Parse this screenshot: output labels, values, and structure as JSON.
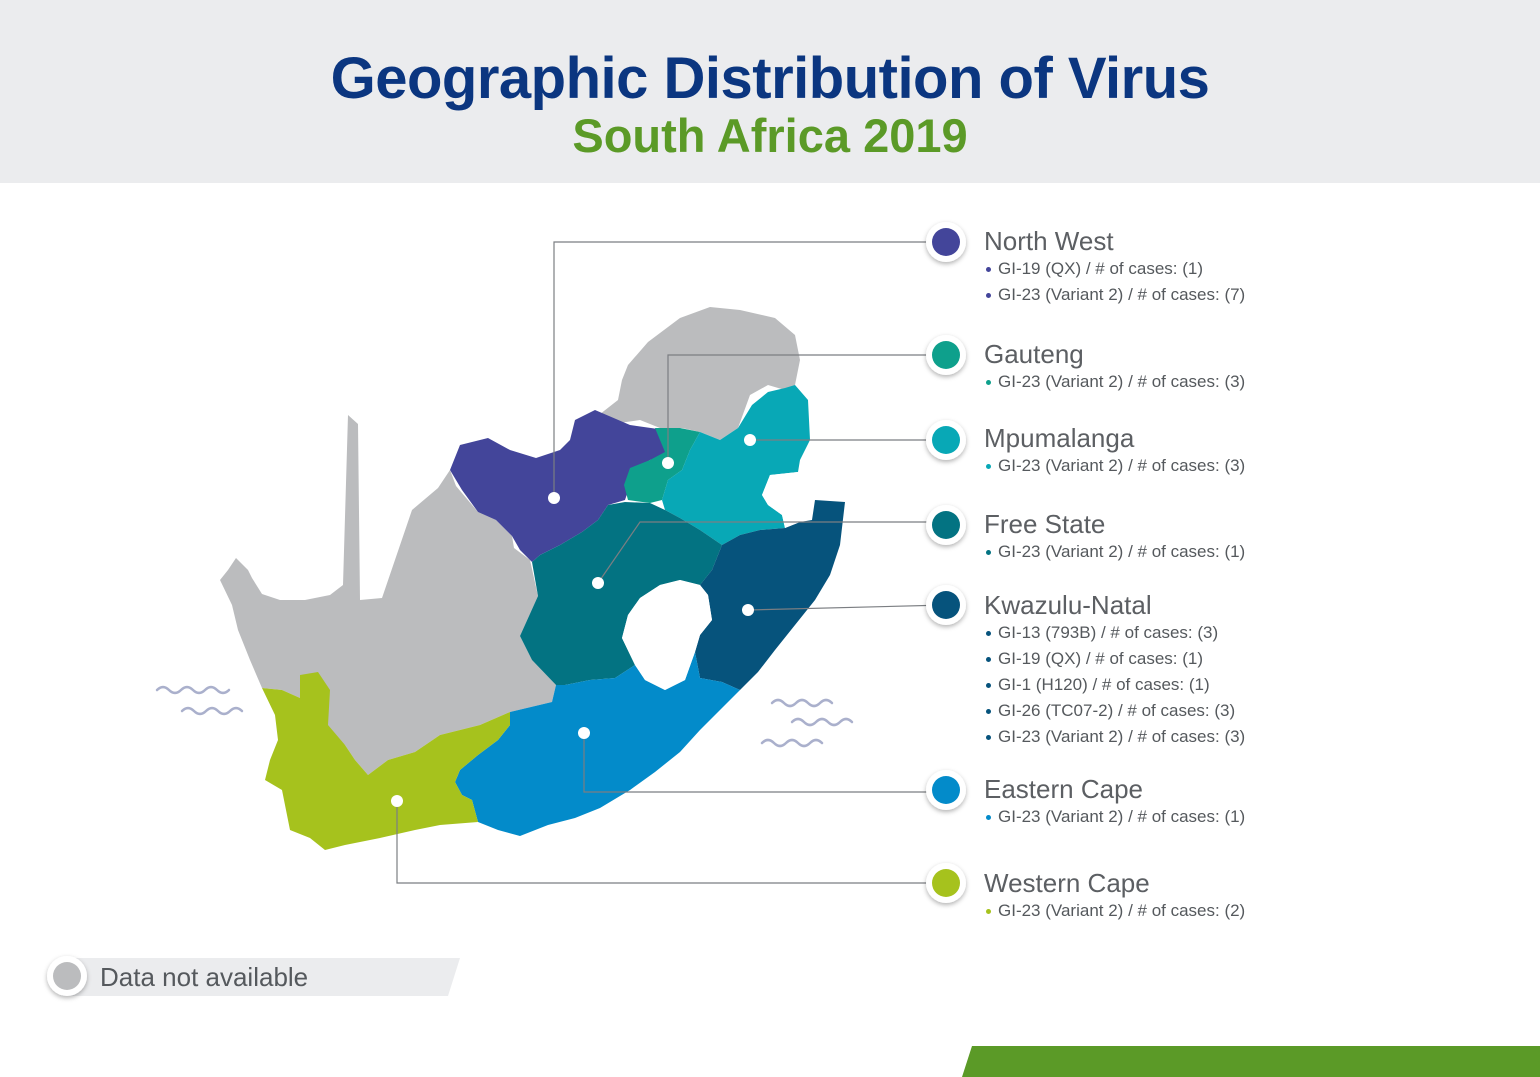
{
  "header": {
    "title": "Geographic Distribution of Virus",
    "subtitle": "South Africa 2019",
    "title_color": "#0b3680",
    "subtitle_color": "#5b9a27",
    "background": "#ebecee"
  },
  "colors": {
    "no_data": "#bbbcbe",
    "water": "#aab0cc",
    "footer": "#5b9a27",
    "leader_line": "#7b7e82"
  },
  "regions": [
    {
      "name": "North West",
      "color": "#43459a",
      "cases": [
        "GI-19 (QX) / # of cases: (1)",
        "GI-23 (Variant 2) / # of cases: (7)"
      ]
    },
    {
      "name": "Gauteng",
      "color": "#0ea08c",
      "cases": [
        "GI-23 (Variant 2) / # of cases: (3)"
      ]
    },
    {
      "name": "Mpumalanga",
      "color": "#08a8b6",
      "cases": [
        "GI-23 (Variant 2) / # of cases: (3)"
      ]
    },
    {
      "name": "Free State",
      "color": "#037382",
      "cases": [
        "GI-23 (Variant 2) / # of cases: (1)"
      ]
    },
    {
      "name": "Kwazulu-Natal",
      "color": "#06537c",
      "cases": [
        "GI-13 (793B) / # of cases: (3)",
        "GI-19 (QX) / # of cases: (1)",
        "GI-1 (H120) / # of cases: (1)",
        "GI-26 (TC07-2) / # of cases: (3)",
        "GI-23 (Variant 2) / # of cases: (3)"
      ]
    },
    {
      "name": "Eastern Cape",
      "color": "#038bca",
      "cases": [
        "GI-23 (Variant 2) / # of cases: (1)"
      ]
    },
    {
      "name": "Western Cape",
      "color": "#a6c21d",
      "cases": [
        "GI-23 (Variant 2) / # of cases: (2)"
      ]
    }
  ],
  "legend": {
    "no_data_label": "Data not available"
  }
}
